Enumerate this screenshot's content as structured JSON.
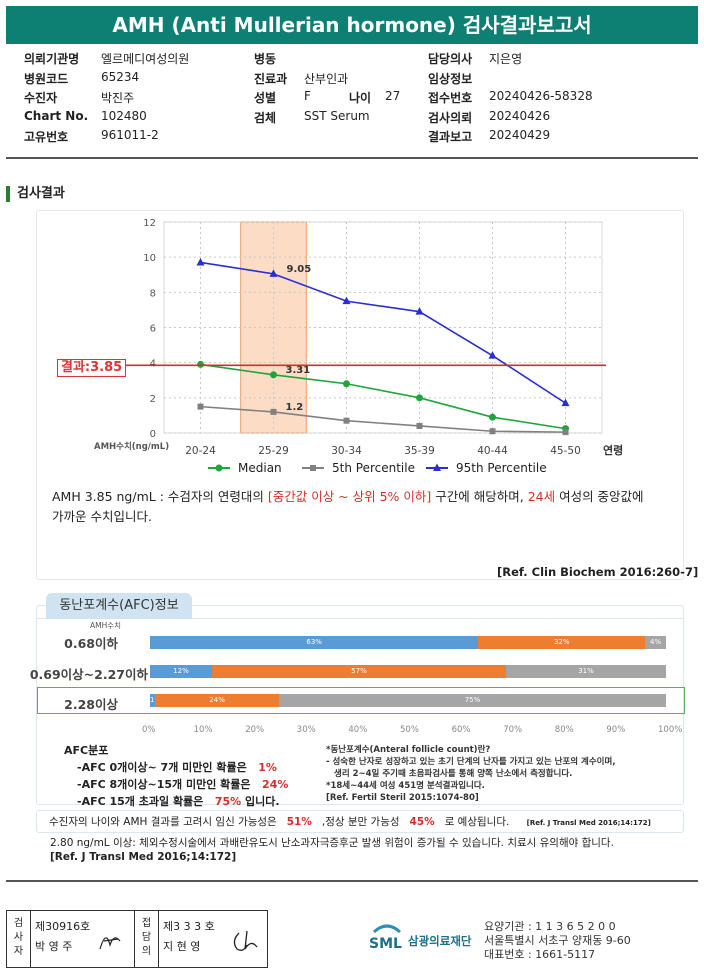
{
  "header": {
    "title": "AMH (Anti Mullerian hormone) 검사결과보고서"
  },
  "info": {
    "col1": [
      [
        "의뢰기관명",
        "엘르메디여성의원"
      ],
      [
        "병원코드",
        "65234"
      ],
      [
        "수진자",
        "박진주"
      ],
      [
        "Chart No.",
        "102480"
      ],
      [
        "고유번호",
        "961011-2"
      ]
    ],
    "col2": [
      [
        "병동",
        ""
      ],
      [
        "진료과",
        "산부인과"
      ],
      [
        "성별",
        "F"
      ],
      [
        "검체",
        "SST Serum"
      ]
    ],
    "age_label": "나이",
    "age_value": "27",
    "col3": [
      [
        "담당의사",
        "지은영"
      ],
      [
        "임상정보",
        ""
      ],
      [
        "접수번호",
        "20240426-58328"
      ],
      [
        "검사의뢰",
        "20240426"
      ],
      [
        "결과보고",
        "20240429"
      ]
    ]
  },
  "section_title": "검사결과",
  "result_label": "결과:3.85",
  "chart_data": {
    "type": "line",
    "categories": [
      "20-24",
      "25-29",
      "30-34",
      "35-39",
      "40-44",
      "45-50"
    ],
    "xlabel": "연령",
    "ylabel": "AMH수치(ng/mL)",
    "ylim": [
      0,
      12
    ],
    "yticks": [
      "0",
      "2",
      "4",
      "6",
      "8",
      "10",
      "12"
    ],
    "series": [
      {
        "name": "Median",
        "color": "#1fa53d",
        "marker": "circle",
        "values": [
          3.9,
          3.31,
          2.8,
          2.0,
          0.9,
          0.25
        ]
      },
      {
        "name": "5th Percentile",
        "color": "#808080",
        "marker": "square",
        "values": [
          1.5,
          1.2,
          0.7,
          0.4,
          0.1,
          0.05
        ]
      },
      {
        "name": "95th Percentile",
        "color": "#2a2ed0",
        "marker": "triangle",
        "values": [
          9.7,
          9.05,
          7.5,
          6.9,
          4.4,
          1.7
        ]
      }
    ],
    "annotations": [
      {
        "text": "9.05",
        "x": "25-29"
      },
      {
        "text": "3.31",
        "x": "25-29"
      },
      {
        "text": "1.2",
        "x": "25-29"
      }
    ],
    "result_line": 3.85,
    "highlight_category": "25-29",
    "grid": true,
    "legend": "bottom"
  },
  "note": {
    "p1": "AMH  3.85 ng/mL : 수검자의 연령대의 ",
    "p2": "[중간값 이상 ~ 상위 5% 이하]",
    "p3": " 구간에 해당하며, ",
    "p4": "24세",
    "p5": " 여성의 중앙값에",
    "p6": "가까운 수치입니다."
  },
  "ref1": "[Ref. Clin Biochem 2016:260-7]",
  "afc": {
    "tab": "동난포계수(AFC)정보",
    "sub": "AMH수치",
    "rows": [
      {
        "label": "0.68이하",
        "segs": [
          {
            "v": 63,
            "t": "63%",
            "c": "b"
          },
          {
            "v": 32,
            "t": "32%",
            "c": "o"
          },
          {
            "v": 4,
            "t": "4%",
            "c": "g"
          }
        ]
      },
      {
        "label": "0.69이상~2.27이하",
        "segs": [
          {
            "v": 12,
            "t": "12%",
            "c": "b"
          },
          {
            "v": 57,
            "t": "57%",
            "c": "o"
          },
          {
            "v": 31,
            "t": "31%",
            "c": "g"
          }
        ]
      },
      {
        "label": "2.28이상",
        "segs": [
          {
            "v": 1,
            "t": "1%",
            "c": "b"
          },
          {
            "v": 24,
            "t": "24%",
            "c": "o"
          },
          {
            "v": 75,
            "t": "75%",
            "c": "g"
          }
        ]
      }
    ],
    "xticks": [
      "0%",
      "10%",
      "20%",
      "30%",
      "40%",
      "50%",
      "60%",
      "70%",
      "80%",
      "90%",
      "100%"
    ],
    "dist_title": "AFC분포",
    "dist": [
      [
        "-AFC 0개이상~ 7개 미만인 확률은",
        "1%",
        ""
      ],
      [
        "-AFC 8개이상~15개 미만인 확률은",
        "24%",
        ""
      ],
      [
        "-AFC 15개 초과일 확률은",
        "75%",
        "입니다."
      ]
    ],
    "def": [
      "*동난포계수(Anteral follicle count)란?",
      "- 성숙한 난자로 성장하고 있는 초기 단계의 난자를 가지고 있는 난포의 계수이며,",
      "  생리 2~4일 주기때 초음파검사를 통해 양쪽 난소에서 측정합니다.",
      "*18세~44세 여성 451명 분석결과입니다.",
      "[Ref. Fertil Steril 2015:1074-80]"
    ]
  },
  "preg": {
    "t1": "수진자의  나이와 AMH 결과를 고려시 임신 가능성은",
    "v1": "51%",
    "t2": ",정상 분만 가능성",
    "v2": "45%",
    "t3": "로 예상됩니다.",
    "ref": "[Ref. J Transl Med 2016;14:172]"
  },
  "footnote": {
    "line1": "2.80  ng/mL  이상: 체외수정시술에서 과배란유도시 난소과자극증후군 발생 위험이 증가될 수 있습니다. 치료시 유의해야 합니다.",
    "line2": "[Ref. J Transl Med 2016;14:172]"
  },
  "sign": {
    "c1": "검사자",
    "c1v": "제30916호",
    "c1n": "박 영 주",
    "c2": "접담의",
    "c2v": "제3 3 3 호",
    "c2n": "지 현 영"
  },
  "lab": {
    "name": "삼광의료재단",
    "l1": "요양기관 : 1 1 3 6 5 2 0 0",
    "l2": "서울특별시 서초구 양재동 9-60",
    "l3": "대표번호 : 1661-5117"
  }
}
